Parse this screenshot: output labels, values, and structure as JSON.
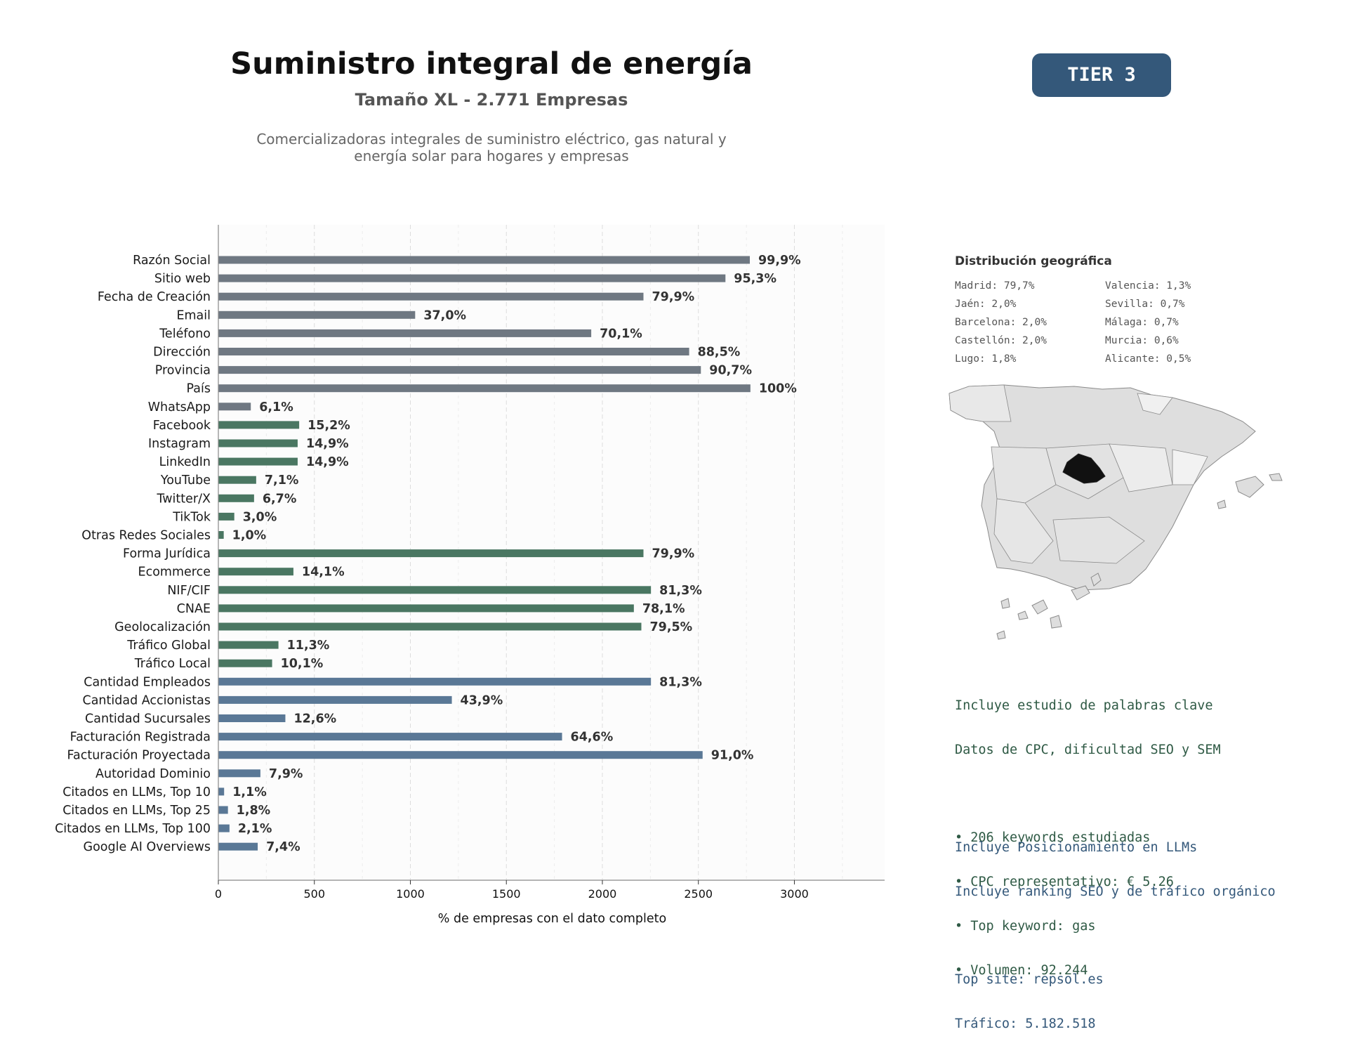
{
  "header": {
    "title": "Suministro integral de energía",
    "subtitle": "Tamaño XL - 2.771 Empresas",
    "description_line1": "Comercializadoras integrales de suministro eléctrico, gas natural y",
    "description_line2": "energía solar para hogares y empresas",
    "tier": "TIER 3"
  },
  "chart_data": {
    "type": "bar",
    "orientation": "horizontal",
    "title": "",
    "xlabel": "% de empresas con el dato completo",
    "ylabel": "",
    "xlim": [
      0,
      3470
    ],
    "xticks": [
      0,
      500,
      1000,
      1500,
      2000,
      2500,
      3000
    ],
    "grid": "vertical dashed",
    "colors": {
      "gray": "#6f7882",
      "green": "#4a7762",
      "blue": "#5a7896"
    },
    "categories": [
      "Razón Social",
      "Sitio web",
      "Fecha de Creación",
      "Email",
      "Teléfono",
      "Dirección",
      "Provincia",
      "País",
      "WhatsApp",
      "Facebook",
      "Instagram",
      "LinkedIn",
      "YouTube",
      "Twitter/X",
      "TikTok",
      "Otras Redes Sociales",
      "Forma Jurídica",
      "Ecommerce",
      "NIF/CIF",
      "CNAE",
      "Geolocalización",
      "Tráfico Global",
      "Tráfico Local",
      "Cantidad Empleados",
      "Cantidad Accionistas",
      "Cantidad Sucursales",
      "Facturación Registrada",
      "Facturación Proyectada",
      "Autoridad Dominio",
      "Citados en LLMs, Top 10",
      "Citados en LLMs, Top 25",
      "Citados en LLMs, Top 100",
      "Google AI Overviews"
    ],
    "values": [
      2768,
      2641,
      2214,
      1025,
      1942,
      2452,
      2513,
      2771,
      169,
      421,
      413,
      413,
      197,
      186,
      83,
      28,
      2214,
      391,
      2253,
      2164,
      2203,
      313,
      280,
      2253,
      1216,
      349,
      1790,
      2522,
      219,
      30,
      50,
      58,
      205
    ],
    "labels": [
      "99,9%",
      "95,3%",
      "79,9%",
      "37,0%",
      "70,1%",
      "88,5%",
      "90,7%",
      "100%",
      "6,1%",
      "15,2%",
      "14,9%",
      "14,9%",
      "7,1%",
      "6,7%",
      "3,0%",
      "1,0%",
      "79,9%",
      "14,1%",
      "81,3%",
      "78,1%",
      "79,5%",
      "11,3%",
      "10,1%",
      "81,3%",
      "43,9%",
      "12,6%",
      "64,6%",
      "91,0%",
      "7,9%",
      "1,1%",
      "1,8%",
      "2,1%",
      "7,4%"
    ],
    "groups": [
      "gray",
      "gray",
      "gray",
      "gray",
      "gray",
      "gray",
      "gray",
      "gray",
      "gray",
      "green",
      "green",
      "green",
      "green",
      "green",
      "green",
      "green",
      "green",
      "green",
      "green",
      "green",
      "green",
      "green",
      "green",
      "blue",
      "blue",
      "blue",
      "blue",
      "blue",
      "blue",
      "blue",
      "blue",
      "blue",
      "blue"
    ]
  },
  "geo": {
    "title": "Distribución geográfica",
    "items": [
      "Madrid: 79,7%",
      "Valencia: 1,3%",
      "Jaén: 2,0%",
      "Sevilla: 0,7%",
      "Barcelona: 2,0%",
      "Málaga: 0,7%",
      "Castellón: 2,0%",
      "Murcia: 0,6%",
      "Lugo: 1,8%",
      "Alicante: 0,5%"
    ]
  },
  "keywords": {
    "line1": "Incluye estudio de palabras clave",
    "line2": "Datos de CPC, dificultad SEO y SEM",
    "bullet1": "• 206 keywords estudiadas",
    "bullet2": "• CPC representativo: € 5.26",
    "bullet3": "• Top keyword: gas",
    "bullet4": "• Volumen: 92.244"
  },
  "llm": {
    "line1": "Incluye Posicionamiento en LLMs",
    "line2": "Incluye ranking SEO y de tráfico orgánico",
    "top_site": "Top site: repsol.es",
    "traffic": "Tráfico: 5.182.518"
  }
}
